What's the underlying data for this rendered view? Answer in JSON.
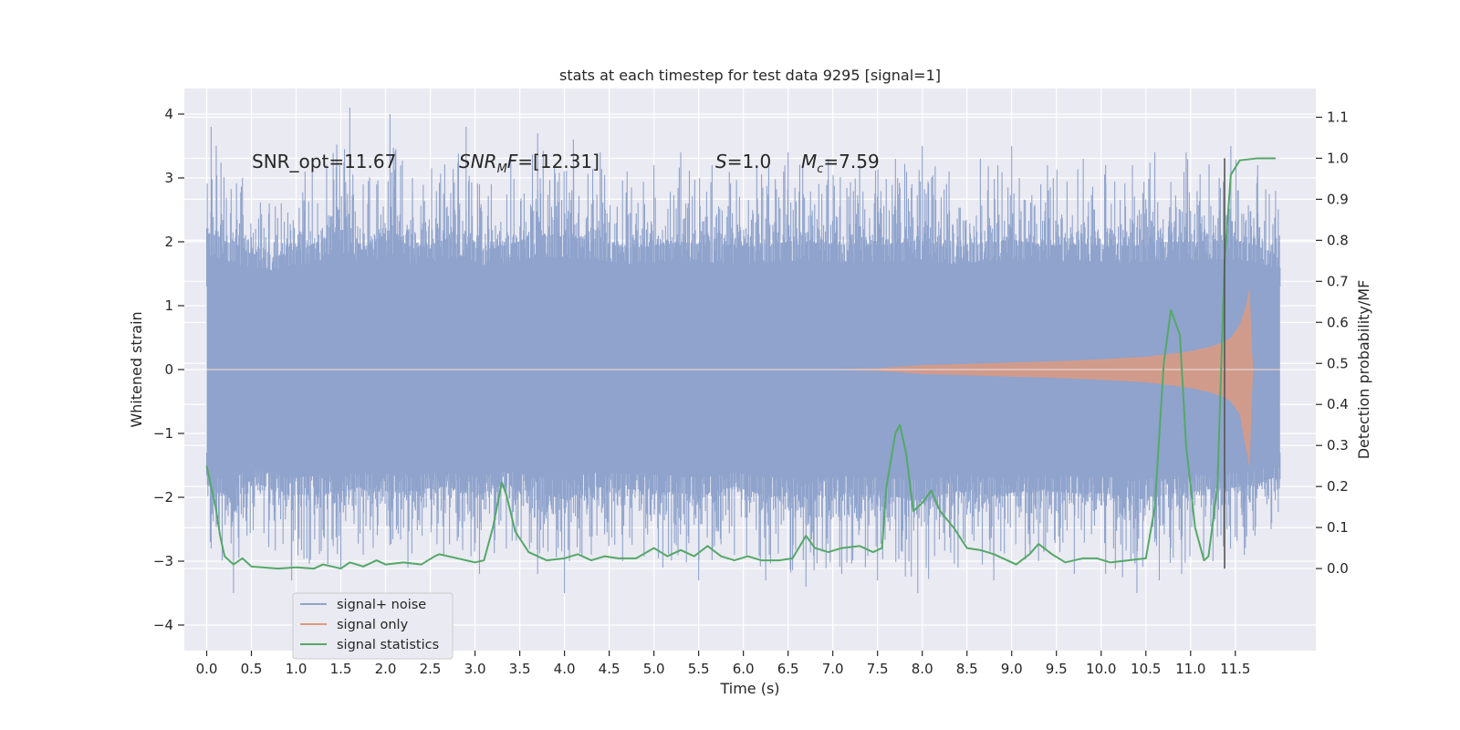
{
  "chart_data": {
    "type": "line",
    "title": "stats at each timestep for test data 9295 [signal=1]",
    "xlabel": "Time (s)",
    "ylabel": "Whitened strain",
    "ylabel_right": "Detection probability/MF",
    "xlim": [
      -0.25,
      12.4
    ],
    "ylim": [
      -4.4,
      4.4
    ],
    "ylim_right": [
      -0.2,
      1.17
    ],
    "x_ticks": [
      "0.0",
      "0.5",
      "1.0",
      "1.5",
      "2.0",
      "2.5",
      "3.0",
      "3.5",
      "4.0",
      "4.5",
      "5.0",
      "5.5",
      "6.0",
      "6.5",
      "7.0",
      "7.5",
      "8.0",
      "8.5",
      "9.0",
      "9.5",
      "10.0",
      "10.5",
      "11.0",
      "11.5"
    ],
    "x_tick_values": [
      0,
      0.5,
      1,
      1.5,
      2,
      2.5,
      3,
      3.5,
      4,
      4.5,
      5,
      5.5,
      6,
      6.5,
      7,
      7.5,
      8,
      8.5,
      9,
      9.5,
      10,
      10.5,
      11,
      11.5
    ],
    "y_ticks_left": [
      "4",
      "3",
      "2",
      "1",
      "0",
      "−1",
      "−2",
      "−3",
      "−4"
    ],
    "y_tick_values_left": [
      4,
      3,
      2,
      1,
      0,
      -1,
      -2,
      -3,
      -4
    ],
    "y_ticks_right": [
      "1.1",
      "1.0",
      "0.9",
      "0.8",
      "0.7",
      "0.6",
      "0.5",
      "0.4",
      "0.3",
      "0.2",
      "0.1",
      "0.0"
    ],
    "y_tick_values_right": [
      1.1,
      1.0,
      0.9,
      0.8,
      0.7,
      0.6,
      0.5,
      0.4,
      0.3,
      0.2,
      0.1,
      0.0
    ],
    "annotations": {
      "snr_opt": "SNR_opt=11.67",
      "snr_mf_main": "SNR",
      "snr_mf_sub": "M",
      "snr_mf_rest": "F",
      "snr_mf_value": "=[12.31]",
      "s_sym": "S",
      "s_value": "=1.0",
      "mc_main": "M",
      "mc_sub": "c",
      "mc_value": "=7.59"
    },
    "merger_time": 11.38,
    "series": [
      {
        "name": "signal+ noise",
        "color": "#8fa3cc",
        "axis": "left",
        "x_range": [
          0.0,
          12.0
        ],
        "band_core": 1.3,
        "peaks_upper": [
          [
            0.05,
            3.8
          ],
          [
            0.4,
            3.0
          ],
          [
            0.7,
            2.6
          ],
          [
            1.1,
            3.1
          ],
          [
            1.6,
            4.1
          ],
          [
            1.75,
            2.9
          ],
          [
            2.05,
            4.0
          ],
          [
            2.3,
            3.0
          ],
          [
            2.9,
            3.8
          ],
          [
            3.05,
            2.9
          ],
          [
            3.4,
            3.3
          ],
          [
            3.7,
            3.7
          ],
          [
            4.1,
            3.6
          ],
          [
            4.4,
            3.4
          ],
          [
            4.7,
            3.1
          ],
          [
            5.0,
            3.2
          ],
          [
            5.3,
            3.4
          ],
          [
            5.65,
            3.2
          ],
          [
            6.15,
            3.2
          ],
          [
            6.5,
            3.4
          ],
          [
            6.95,
            3.3
          ],
          [
            7.3,
            3.2
          ],
          [
            7.7,
            3.3
          ],
          [
            8.0,
            3.5
          ],
          [
            8.3,
            3.1
          ],
          [
            8.65,
            3.3
          ],
          [
            9.0,
            3.5
          ],
          [
            9.4,
            3.2
          ],
          [
            9.8,
            3.3
          ],
          [
            10.05,
            3.2
          ],
          [
            10.35,
            3.2
          ],
          [
            10.6,
            3.4
          ],
          [
            10.95,
            3.4
          ],
          [
            11.45,
            3.5
          ],
          [
            11.75,
            3.2
          ],
          [
            11.95,
            2.8
          ]
        ],
        "peaks_lower": [
          [
            0.05,
            -2.8
          ],
          [
            0.3,
            -3.5
          ],
          [
            0.45,
            -2.6
          ],
          [
            0.95,
            -3.3
          ],
          [
            1.5,
            -3.1
          ],
          [
            1.75,
            -2.9
          ],
          [
            2.25,
            -3.1
          ],
          [
            2.65,
            -2.9
          ],
          [
            3.05,
            -3.2
          ],
          [
            3.35,
            -2.8
          ],
          [
            3.7,
            -3.2
          ],
          [
            4.0,
            -3.5
          ],
          [
            4.3,
            -2.9
          ],
          [
            4.65,
            -3.0
          ],
          [
            5.1,
            -3.1
          ],
          [
            5.5,
            -3.3
          ],
          [
            5.9,
            -2.9
          ],
          [
            6.25,
            -3.3
          ],
          [
            6.7,
            -3.4
          ],
          [
            7.1,
            -3.2
          ],
          [
            7.5,
            -3.3
          ],
          [
            7.95,
            -3.5
          ],
          [
            8.4,
            -3.1
          ],
          [
            8.8,
            -3.3
          ],
          [
            9.3,
            -3.0
          ],
          [
            9.7,
            -3.2
          ],
          [
            10.05,
            -3.2
          ],
          [
            10.4,
            -3.5
          ],
          [
            10.65,
            -3.3
          ],
          [
            10.9,
            -3.2
          ],
          [
            11.25,
            -3.0
          ],
          [
            11.6,
            -2.9
          ],
          [
            11.9,
            -2.5
          ]
        ]
      },
      {
        "name": "signal only",
        "color": "#dd9a80",
        "axis": "left",
        "envelope": [
          [
            6.8,
            0.0
          ],
          [
            7.5,
            0.02
          ],
          [
            8.0,
            0.07
          ],
          [
            8.5,
            0.09
          ],
          [
            9.0,
            0.11
          ],
          [
            9.5,
            0.13
          ],
          [
            10.0,
            0.16
          ],
          [
            10.5,
            0.2
          ],
          [
            10.8,
            0.25
          ],
          [
            11.0,
            0.29
          ],
          [
            11.2,
            0.35
          ],
          [
            11.35,
            0.42
          ],
          [
            11.45,
            0.5
          ],
          [
            11.55,
            0.7
          ],
          [
            11.62,
            1.0
          ],
          [
            11.66,
            1.3
          ],
          [
            11.68,
            0.5
          ],
          [
            11.7,
            0.0
          ]
        ]
      },
      {
        "name": "signal statistics",
        "color": "#55a868",
        "axis": "right",
        "points": [
          [
            0.0,
            0.25
          ],
          [
            0.1,
            0.15
          ],
          [
            0.15,
            0.08
          ],
          [
            0.2,
            0.03
          ],
          [
            0.3,
            0.01
          ],
          [
            0.4,
            0.025
          ],
          [
            0.5,
            0.005
          ],
          [
            0.8,
            0.0
          ],
          [
            1.0,
            0.003
          ],
          [
            1.2,
            0.0
          ],
          [
            1.3,
            0.01
          ],
          [
            1.5,
            0.0
          ],
          [
            1.6,
            0.015
          ],
          [
            1.75,
            0.005
          ],
          [
            1.9,
            0.02
          ],
          [
            2.0,
            0.01
          ],
          [
            2.2,
            0.015
          ],
          [
            2.4,
            0.01
          ],
          [
            2.55,
            0.03
          ],
          [
            2.6,
            0.035
          ],
          [
            2.8,
            0.025
          ],
          [
            3.0,
            0.015
          ],
          [
            3.1,
            0.02
          ],
          [
            3.2,
            0.1
          ],
          [
            3.3,
            0.21
          ],
          [
            3.35,
            0.18
          ],
          [
            3.45,
            0.09
          ],
          [
            3.6,
            0.04
          ],
          [
            3.8,
            0.02
          ],
          [
            4.0,
            0.025
          ],
          [
            4.15,
            0.035
          ],
          [
            4.3,
            0.02
          ],
          [
            4.45,
            0.03
          ],
          [
            4.6,
            0.025
          ],
          [
            4.8,
            0.025
          ],
          [
            5.0,
            0.05
          ],
          [
            5.15,
            0.03
          ],
          [
            5.3,
            0.045
          ],
          [
            5.45,
            0.03
          ],
          [
            5.6,
            0.055
          ],
          [
            5.75,
            0.03
          ],
          [
            5.9,
            0.02
          ],
          [
            6.05,
            0.03
          ],
          [
            6.2,
            0.02
          ],
          [
            6.4,
            0.02
          ],
          [
            6.55,
            0.025
          ],
          [
            6.7,
            0.08
          ],
          [
            6.8,
            0.05
          ],
          [
            6.95,
            0.04
          ],
          [
            7.1,
            0.05
          ],
          [
            7.3,
            0.055
          ],
          [
            7.45,
            0.04
          ],
          [
            7.55,
            0.05
          ],
          [
            7.6,
            0.2
          ],
          [
            7.7,
            0.33
          ],
          [
            7.75,
            0.35
          ],
          [
            7.82,
            0.28
          ],
          [
            7.9,
            0.14
          ],
          [
            8.0,
            0.16
          ],
          [
            8.1,
            0.19
          ],
          [
            8.2,
            0.14
          ],
          [
            8.35,
            0.1
          ],
          [
            8.5,
            0.05
          ],
          [
            8.65,
            0.045
          ],
          [
            8.8,
            0.035
          ],
          [
            8.95,
            0.02
          ],
          [
            9.05,
            0.01
          ],
          [
            9.2,
            0.035
          ],
          [
            9.3,
            0.06
          ],
          [
            9.45,
            0.035
          ],
          [
            9.6,
            0.015
          ],
          [
            9.8,
            0.025
          ],
          [
            9.95,
            0.025
          ],
          [
            10.1,
            0.015
          ],
          [
            10.3,
            0.02
          ],
          [
            10.5,
            0.025
          ],
          [
            10.6,
            0.15
          ],
          [
            10.7,
            0.5
          ],
          [
            10.78,
            0.63
          ],
          [
            10.88,
            0.57
          ],
          [
            10.95,
            0.3
          ],
          [
            11.05,
            0.1
          ],
          [
            11.15,
            0.02
          ],
          [
            11.2,
            0.03
          ],
          [
            11.3,
            0.2
          ],
          [
            11.38,
            0.75
          ],
          [
            11.45,
            0.96
          ],
          [
            11.55,
            0.995
          ],
          [
            11.75,
            1.0
          ],
          [
            11.95,
            1.0
          ]
        ]
      }
    ],
    "legend": [
      "signal+ noise",
      "signal only",
      "signal statistics"
    ],
    "legend_position": "lower-left",
    "grid": true
  },
  "colors": {
    "plot_bg": "#eaeaf2",
    "grid": "#ffffff",
    "merger_line": "#555555"
  }
}
